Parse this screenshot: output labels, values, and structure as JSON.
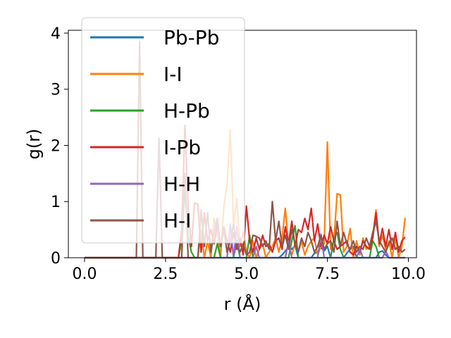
{
  "chart_data": {
    "type": "line",
    "title": "",
    "xlabel": "r (Å)",
    "ylabel": "g(r)",
    "xlim": [
      -0.5,
      10.25
    ],
    "ylim": [
      0,
      4.05
    ],
    "xticks": [
      "0.0",
      "2.5",
      "5.0",
      "7.5",
      "10.0"
    ],
    "xtick_values": [
      0,
      2.5,
      5,
      7.5,
      10
    ],
    "yticks": [
      "0",
      "1",
      "2",
      "3",
      "4"
    ],
    "ytick_values": [
      0,
      1,
      2,
      3,
      4
    ],
    "grid": false,
    "legend_position": "upper-left",
    "series": [
      {
        "name": "Pb-Pb",
        "color": "#1f77b4",
        "x": [
          0,
          3.0,
          6.0,
          6.1,
          6.2,
          6.3,
          6.4,
          6.5,
          6.6,
          7.0,
          7.1,
          7.2,
          7.3,
          7.4,
          7.5,
          7.6,
          8.0,
          8.1,
          8.2,
          8.3,
          8.4,
          9.0,
          9.1,
          9.2,
          9.3,
          9.4,
          9.9
        ],
        "y": [
          0,
          0,
          0,
          0.05,
          0.12,
          0.2,
          0.15,
          0.22,
          0,
          0,
          0.08,
          0.1,
          0.18,
          0.12,
          0.2,
          0,
          0,
          0.08,
          0.15,
          0.2,
          0,
          0,
          0.1,
          0.12,
          0.05,
          0,
          0
        ]
      },
      {
        "name": "I-I",
        "color": "#ff7f0e",
        "x": [
          0,
          3.5,
          3.6,
          3.7,
          3.8,
          3.9,
          4.0,
          4.1,
          4.2,
          4.3,
          4.4,
          4.5,
          4.6,
          4.7,
          4.8,
          4.9,
          5.0,
          5.1,
          5.2,
          5.3,
          5.4,
          5.5,
          5.6,
          5.7,
          5.8,
          5.9,
          6.0,
          6.1,
          6.2,
          6.3,
          6.4,
          6.5,
          6.6,
          6.7,
          6.8,
          6.9,
          7.0,
          7.1,
          7.2,
          7.3,
          7.4,
          7.5,
          7.6,
          7.7,
          7.8,
          7.9,
          8.0,
          8.1,
          8.2,
          8.3,
          8.4,
          8.5,
          8.6,
          8.7,
          8.8,
          8.9,
          9.0,
          9.1,
          9.2,
          9.3,
          9.4,
          9.5,
          9.6,
          9.7,
          9.8,
          9.9
        ],
        "y": [
          0,
          0,
          0.5,
          0,
          0.3,
          0,
          0.7,
          0.4,
          0,
          0.9,
          1.3,
          2.27,
          0.6,
          1.05,
          0.2,
          0.45,
          0.1,
          0,
          0.3,
          0,
          0.15,
          0.25,
          0,
          0.1,
          0.2,
          0.35,
          0.1,
          0.35,
          0.88,
          0.2,
          0.05,
          0.25,
          0.1,
          0.3,
          0.05,
          0.2,
          0.3,
          0.35,
          0.05,
          0.2,
          0.25,
          2.06,
          0.15,
          0.3,
          1.14,
          1.12,
          0.1,
          0.2,
          0.52,
          0,
          0.3,
          0.05,
          0.35,
          0.15,
          0.2,
          0.4,
          0.85,
          0.2,
          0.4,
          0.15,
          0.3,
          0,
          0.35,
          0,
          0.2,
          0.71
        ]
      },
      {
        "name": "H-Pb",
        "color": "#2ca02c",
        "x": [
          0,
          2.9,
          3.0,
          3.1,
          3.2,
          3.3,
          3.4,
          4.0,
          4.1,
          4.2,
          4.6,
          4.7,
          4.8,
          5.0,
          5.1,
          5.2,
          6.3,
          6.4,
          6.5,
          6.6,
          7.6,
          7.7,
          7.8,
          7.9,
          8.0,
          8.8,
          8.9,
          9.0,
          9.1
        ],
        "y": [
          0,
          0,
          0.3,
          1.2,
          0.4,
          0.1,
          0,
          0,
          0.25,
          0,
          0,
          0.3,
          0,
          0,
          0.4,
          0,
          0,
          0.3,
          0.57,
          0,
          0,
          0.35,
          0.45,
          0.15,
          0,
          0,
          0.3,
          0.2,
          0
        ]
      },
      {
        "name": "I-Pb",
        "color": "#d62728",
        "x": [
          0,
          2.9,
          3.0,
          3.1,
          3.2,
          3.3,
          3.4,
          3.5,
          3.6,
          3.7,
          3.8,
          3.9,
          4.0,
          4.1,
          4.2,
          4.3,
          4.4,
          4.5,
          4.6,
          4.7,
          4.8,
          4.9,
          5.0,
          5.1,
          5.2,
          5.3,
          5.4,
          5.5,
          5.6,
          5.7,
          5.8,
          5.9,
          6.0,
          6.1,
          6.2,
          6.3,
          6.4,
          6.5,
          6.6,
          6.7,
          6.8,
          6.9,
          7.0,
          7.1,
          7.2,
          7.3,
          7.4,
          7.5,
          7.6,
          7.7,
          7.8,
          7.9,
          8.0,
          8.1,
          8.2,
          8.3,
          8.4,
          8.5,
          8.6,
          8.7,
          8.8,
          8.9,
          9.0,
          9.1,
          9.2,
          9.3,
          9.4,
          9.5,
          9.6,
          9.7,
          9.8,
          9.9
        ],
        "y": [
          0,
          0,
          0.5,
          2.36,
          0.9,
          0.2,
          0.98,
          0.95,
          0.1,
          0.8,
          0.3,
          0.5,
          0.25,
          0.6,
          0.2,
          0.55,
          0.3,
          0.1,
          0.45,
          0.15,
          0.35,
          0.05,
          0.92,
          0.3,
          0.1,
          0.35,
          0.15,
          0.4,
          0.2,
          0.25,
          0.1,
          0.3,
          0.35,
          0.15,
          0.55,
          0.25,
          0.65,
          0.2,
          0.5,
          0.45,
          0.7,
          0.5,
          0.88,
          0.3,
          0.6,
          0.2,
          0.4,
          0.25,
          0.55,
          0.3,
          0.15,
          0.2,
          0.25,
          0.3,
          0.1,
          0.05,
          0.2,
          0.1,
          0.3,
          0.2,
          0.15,
          0.35,
          0.8,
          0.25,
          0.52,
          0.2,
          0.5,
          0.15,
          0.45,
          0.1,
          0.3,
          0.37
        ]
      },
      {
        "name": "H-H",
        "color": "#9467bd",
        "x": [
          0,
          4.4,
          4.5,
          4.6,
          4.7,
          4.8,
          5.2,
          5.3,
          5.4,
          6.2,
          6.3,
          6.4,
          7.2,
          7.3,
          7.4,
          8.4,
          8.5,
          8.6,
          9.2,
          9.3,
          9.4,
          9.9
        ],
        "y": [
          0,
          0,
          0.6,
          0,
          0.55,
          0,
          0,
          0.2,
          0,
          0,
          0.3,
          0,
          0,
          0.42,
          0,
          0,
          0.15,
          0,
          0,
          0.12,
          0,
          0
        ]
      },
      {
        "name": "H-I",
        "color": "#8c564b",
        "x": [
          0,
          1.6,
          1.7,
          1.8,
          2.2,
          2.3,
          2.4,
          3.0,
          3.1,
          3.2,
          3.5,
          3.6,
          3.7,
          3.8,
          3.9,
          4.0,
          4.1,
          4.2,
          4.3,
          4.4,
          4.5,
          4.6,
          4.7,
          4.8,
          4.9,
          5.0,
          5.1,
          5.2,
          5.3,
          5.4,
          5.5,
          5.6,
          5.7,
          5.8,
          5.9,
          6.0,
          6.1,
          6.2,
          6.3,
          6.4,
          6.5,
          6.6,
          6.7,
          6.8,
          6.9,
          7.0,
          7.1,
          7.2,
          7.3,
          7.4,
          7.5,
          7.6,
          7.7,
          7.8,
          7.9,
          8.0,
          8.1,
          8.2,
          8.3,
          8.4,
          8.5,
          8.6,
          8.7,
          8.8,
          8.9,
          9.0,
          9.1,
          9.2,
          9.3,
          9.4,
          9.5,
          9.6,
          9.7,
          9.8,
          9.9
        ],
        "y": [
          0,
          0,
          3.85,
          0,
          0,
          2.13,
          0,
          0,
          1.5,
          0,
          0,
          0.85,
          0.2,
          0.8,
          0.1,
          0.45,
          0.7,
          0.2,
          0.5,
          0.1,
          0.3,
          0.6,
          0.2,
          0.1,
          0.25,
          0.05,
          0.1,
          0.4,
          0.38,
          0.35,
          0.2,
          0.3,
          0.15,
          1.0,
          0.3,
          0.65,
          0.2,
          0.4,
          0.15,
          0.5,
          0.25,
          0.1,
          0.35,
          0.2,
          0.45,
          0.3,
          0.1,
          0.2,
          0.4,
          0.15,
          0.25,
          0.3,
          0.1,
          0.65,
          0.2,
          0.45,
          0.25,
          0.15,
          0.3,
          0.1,
          0.2,
          0.15,
          0.35,
          0.2,
          0.45,
          0.65,
          0.3,
          0.2,
          0.1,
          0.25,
          0.35,
          0.15,
          0.2,
          0.1,
          0.15
        ]
      }
    ]
  }
}
